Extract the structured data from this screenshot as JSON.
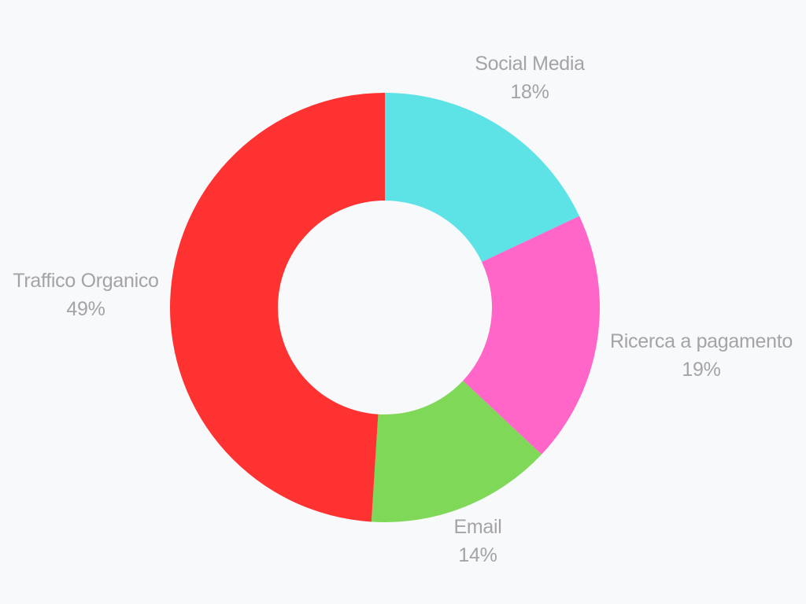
{
  "chart_data": {
    "type": "pie",
    "subtype": "donut",
    "title": "",
    "categories": [
      "Social Media",
      "Ricerca a pagamento",
      "Email",
      "Traffico Organico"
    ],
    "values": [
      18,
      19,
      14,
      49
    ],
    "value_labels": [
      "18%",
      "19%",
      "14%",
      "49%"
    ],
    "colors": [
      "#5de3e6",
      "#ff66c7",
      "#7fd858",
      "#ff3232"
    ],
    "start_angle_deg": 0,
    "direction": "clockwise",
    "legend": "none",
    "labels_position": "outside"
  },
  "slices": [
    {
      "name": "Social Media",
      "percent": "18%",
      "color": "#5de3e6"
    },
    {
      "name": "Ricerca a pagamento",
      "percent": "19%",
      "color": "#ff66c7"
    },
    {
      "name": "Email",
      "percent": "14%",
      "color": "#7fd858"
    },
    {
      "name": "Traffico Organico",
      "percent": "49%",
      "color": "#ff3232"
    }
  ],
  "style": {
    "background": "#f8f9fb",
    "label_color": "#a3a3a8"
  }
}
